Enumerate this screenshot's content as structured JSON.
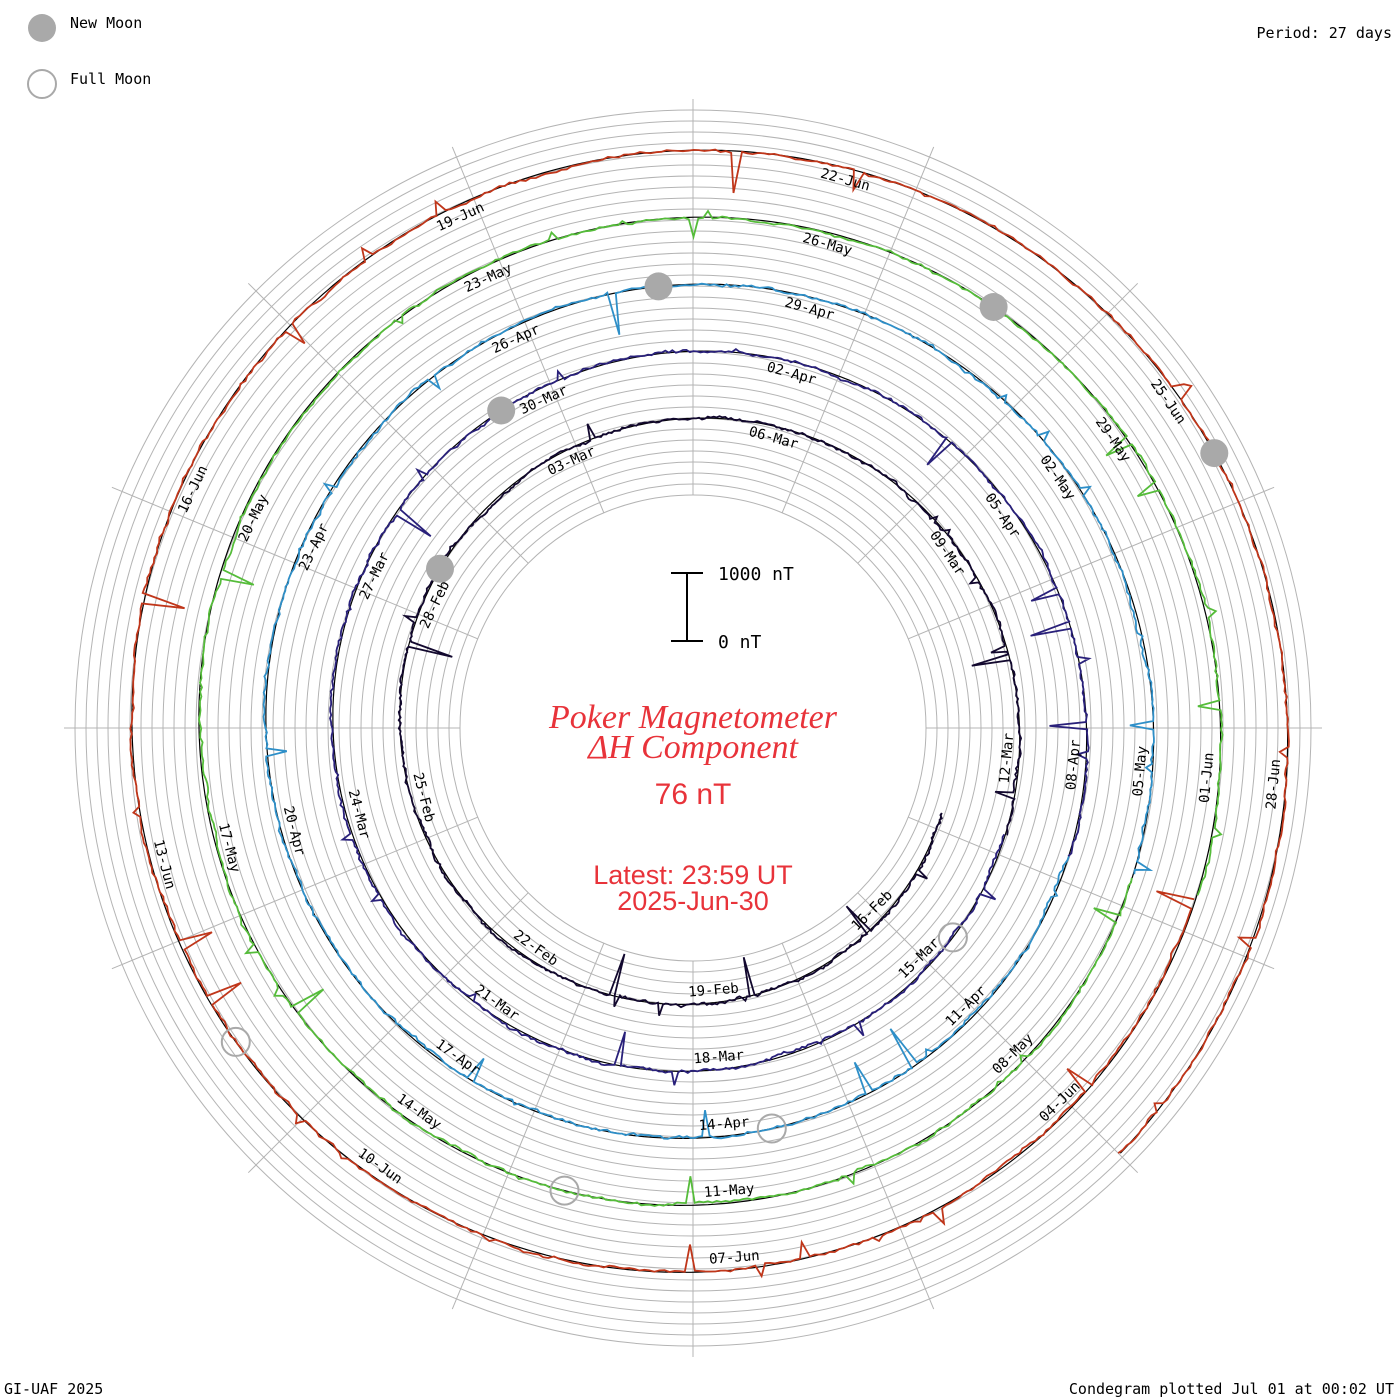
{
  "legend": {
    "new_moon_label": "New Moon",
    "full_moon_label": "Full Moon"
  },
  "period_label": "Period: 27 days",
  "footer": {
    "left": "GI-UAF 2025",
    "right": "Condegram plotted Jul 01 at 00:02 UT"
  },
  "center": {
    "title_line1": "Poker Magnetometer",
    "title_line2": "ΔH Component",
    "current_value": "76 nT",
    "latest_line1": "Latest: 23:59 UT",
    "latest_line2": "2025-Jun-30",
    "scale_top_label": "1000 nT",
    "scale_bottom_label": "0 nT"
  },
  "colors": {
    "text_red": "#e8333a",
    "grid": "#b4b4b4",
    "baseline": "#000000",
    "moon_fill": "#a9a9a9",
    "rotation_colors": [
      "#12082e",
      "#29207a",
      "#2d3fb0",
      "#2e8fc8",
      "#2fb4a2",
      "#55bc3a",
      "#a8b81c",
      "#b49a12",
      "#c07014",
      "#c0361a",
      "#b8101a"
    ]
  },
  "chart_data": {
    "type": "line",
    "title": "Poker Magnetometer",
    "subtitle": "ΔH Component",
    "period_days": 27,
    "scale_nT": [
      0,
      1000
    ],
    "date_labels": [
      "16-Feb",
      "19-Feb",
      "22-Feb",
      "25-Feb",
      "28-Feb",
      "03-Mar",
      "06-Mar",
      "09-Mar",
      "12-Mar",
      "15-Mar",
      "18-Mar",
      "21-Mar",
      "24-Mar",
      "27-Mar",
      "30-Mar",
      "02-Apr",
      "05-Apr",
      "08-Apr",
      "11-Apr",
      "14-Apr",
      "17-Apr",
      "20-Apr",
      "23-Apr",
      "26-Apr",
      "29-Apr",
      "02-May",
      "05-May",
      "08-May",
      "11-May",
      "14-May",
      "17-May",
      "20-May",
      "23-May",
      "26-May",
      "29-May",
      "01-Jun",
      "04-Jun",
      "07-Jun",
      "10-Jun",
      "13-Jun",
      "16-Jun",
      "19-Jun",
      "22-Jun",
      "25-Jun",
      "28-Jun"
    ],
    "series": [
      {
        "start": "2025-02-14",
        "end": "2025-03-13",
        "color": "#12082e"
      },
      {
        "start": "2025-03-13",
        "end": "2025-04-09",
        "color": "#29207a"
      },
      {
        "start": "2025-04-09",
        "end": "2025-05-06",
        "color": "#2e8fc8"
      },
      {
        "start": "2025-05-06",
        "end": "2025-06-02",
        "color": "#55bc3a"
      },
      {
        "start": "2025-06-02",
        "end": "2025-06-30",
        "color": "#c0361a"
      }
    ],
    "new_moon_dates": [
      "2025-02-28",
      "2025-03-29",
      "2025-04-27",
      "2025-05-27",
      "2025-06-25"
    ],
    "full_moon_dates": [
      "2025-03-14",
      "2025-04-13",
      "2025-05-12",
      "2025-06-11"
    ]
  }
}
